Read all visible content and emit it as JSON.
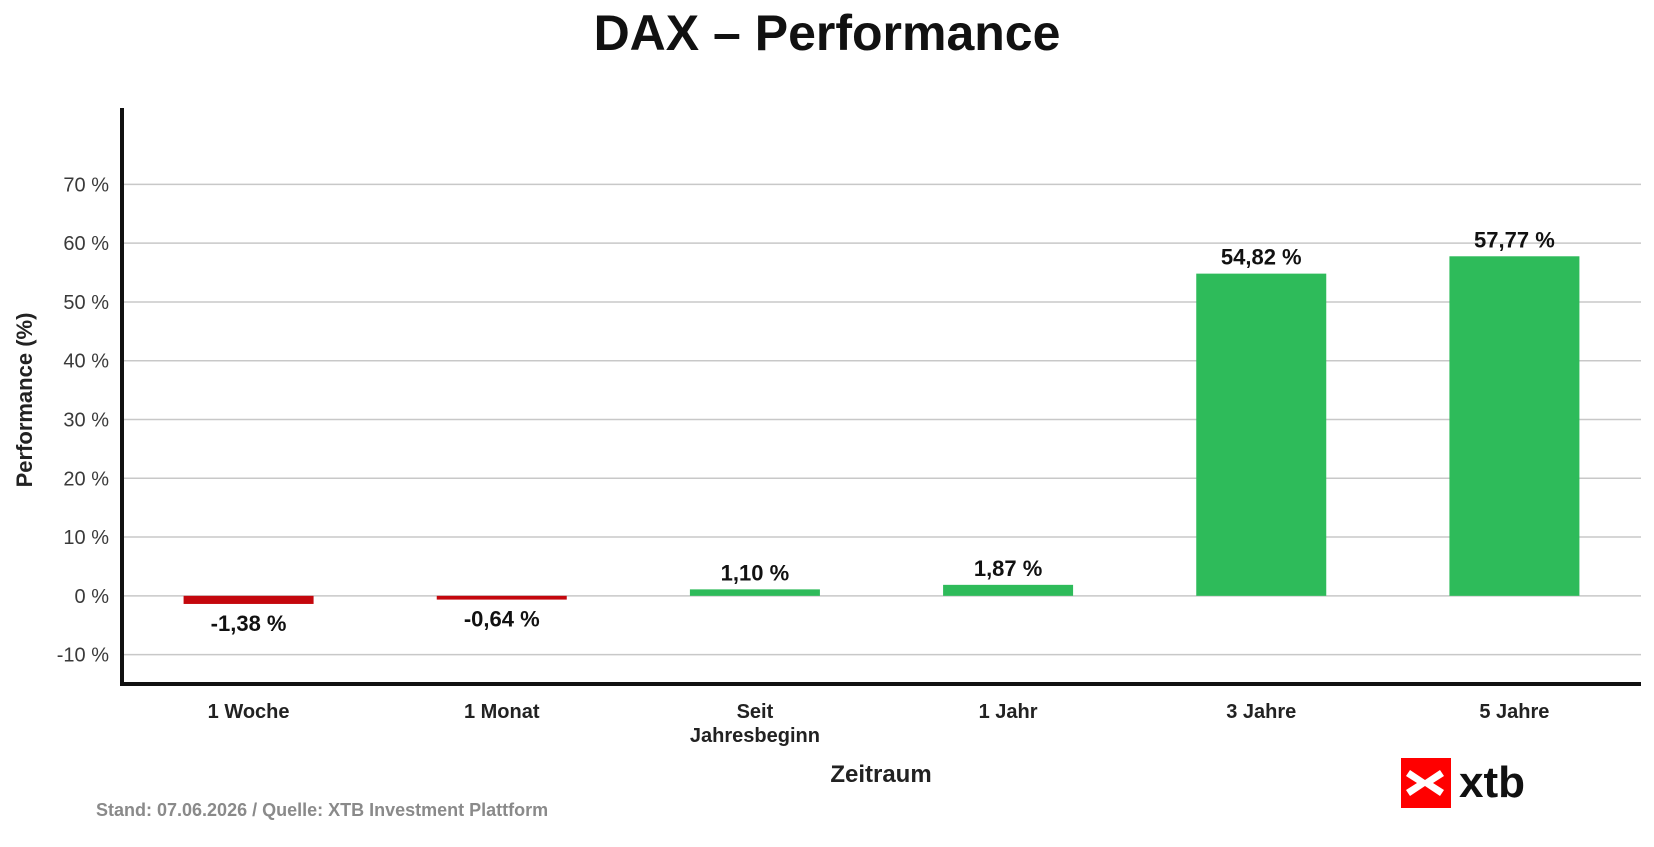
{
  "colors": {
    "positive": "#2ebb5a",
    "negative": "#c4070d",
    "grid": "#c8c8c8",
    "axis": "#111111",
    "logo_red": "#ff0000"
  },
  "chart_data": {
    "type": "bar",
    "title": "DAX – Performance",
    "xlabel": "Zeitraum",
    "ylabel": "Performance (%)",
    "ylim": [
      -15,
      83
    ],
    "yticks": [
      -10,
      0,
      10,
      20,
      30,
      40,
      50,
      60,
      70
    ],
    "ytick_labels": [
      "-10 %",
      "0 %",
      "10 %",
      "20 %",
      "30 %",
      "40 %",
      "50 %",
      "60 %",
      "70 %"
    ],
    "grid": true,
    "categories": [
      [
        "1 Woche"
      ],
      [
        "1 Monat"
      ],
      [
        "Seit",
        "Jahresbeginn"
      ],
      [
        "1 Jahr"
      ],
      [
        "3 Jahre"
      ],
      [
        "5 Jahre"
      ]
    ],
    "values": [
      -1.38,
      -0.64,
      1.1,
      1.87,
      54.82,
      57.77
    ],
    "value_labels": [
      "-1,38 %",
      "-0,64 %",
      "1,10 %",
      "1,87 %",
      "54,82 %",
      "57,77 %"
    ]
  },
  "footer": {
    "source": "Stand: 07.06.2026 / Quelle: XTB Investment Plattform"
  },
  "logo": {
    "text": "xtb",
    "icon": "xtb-x-icon"
  }
}
